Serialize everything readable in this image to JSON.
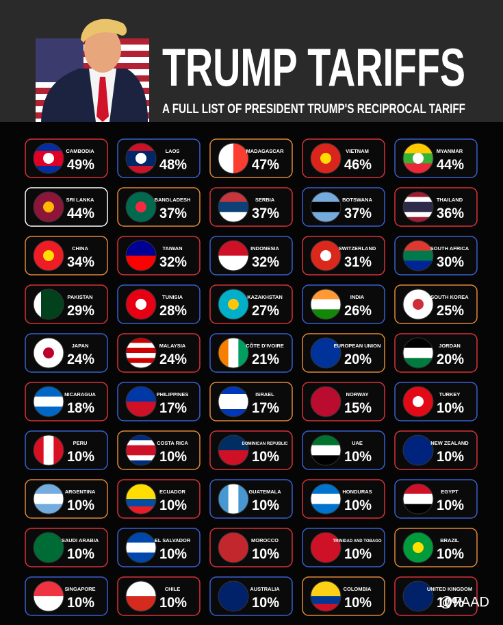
{
  "header": {
    "title": "TRUMP TARIFFS",
    "subtitle": "A FULL LIST OF PRESIDENT TRUMP'S RECIPROCAL TARIFF"
  },
  "cards": [
    {
      "country": "CAMBODIA",
      "tariff": "49%"
    },
    {
      "country": "LAOS",
      "tariff": "48%"
    },
    {
      "country": "MADAGASCAR",
      "tariff": "47%"
    },
    {
      "country": "VIETNAM",
      "tariff": "46%"
    },
    {
      "country": "MYANMAR",
      "tariff": "44%"
    },
    {
      "country": "SRI LANKA",
      "tariff": "44%"
    },
    {
      "country": "BANGLADESH",
      "tariff": "37%"
    },
    {
      "country": "SERBIA",
      "tariff": "37%"
    },
    {
      "country": "BOTSWANA",
      "tariff": "37%"
    },
    {
      "country": "THAILAND",
      "tariff": "36%"
    },
    {
      "country": "CHINA",
      "tariff": "34%"
    },
    {
      "country": "TAIWAN",
      "tariff": "32%"
    },
    {
      "country": "INDONESIA",
      "tariff": "32%"
    },
    {
      "country": "SWITZERLAND",
      "tariff": "31%"
    },
    {
      "country": "SOUTH AFRICA",
      "tariff": "30%"
    },
    {
      "country": "PAKISTAN",
      "tariff": "29%"
    },
    {
      "country": "TUNISIA",
      "tariff": "28%"
    },
    {
      "country": "KAZAKHSTAN",
      "tariff": "27%"
    },
    {
      "country": "INDIA",
      "tariff": "26%"
    },
    {
      "country": "SOUTH KOREA",
      "tariff": "25%"
    },
    {
      "country": "JAPAN",
      "tariff": "24%"
    },
    {
      "country": "MALAYSIA",
      "tariff": "24%"
    },
    {
      "country": "CÔTE D'IVOIRE",
      "tariff": "21%"
    },
    {
      "country": "EUROPEAN UNION",
      "tariff": "20%"
    },
    {
      "country": "JORDAN",
      "tariff": "20%"
    },
    {
      "country": "NICARAGUA",
      "tariff": "18%"
    },
    {
      "country": "PHILIPPINES",
      "tariff": "17%"
    },
    {
      "country": "ISRAEL",
      "tariff": "17%"
    },
    {
      "country": "NORWAY",
      "tariff": "15%"
    },
    {
      "country": "TURKEY",
      "tariff": "10%"
    },
    {
      "country": "PERU",
      "tariff": "10%"
    },
    {
      "country": "COSTA RICA",
      "tariff": "10%"
    },
    {
      "country": "DOMINICAN REPUBLIC",
      "tariff": "10%"
    },
    {
      "country": "UAE",
      "tariff": "10%"
    },
    {
      "country": "NEW ZEALAND",
      "tariff": "10%"
    },
    {
      "country": "ARGENTINA",
      "tariff": "10%"
    },
    {
      "country": "ECUADOR",
      "tariff": "10%"
    },
    {
      "country": "GUATEMALA",
      "tariff": "10%"
    },
    {
      "country": "HONDURAS",
      "tariff": "10%"
    },
    {
      "country": "EGYPT",
      "tariff": "10%"
    },
    {
      "country": "SAUDI ARABIA",
      "tariff": "10%"
    },
    {
      "country": "EL SALVADOR",
      "tariff": "10%"
    },
    {
      "country": "MOROCCO",
      "tariff": "10%"
    },
    {
      "country": "TRINIDAD AND TOBAGO",
      "tariff": "10%"
    },
    {
      "country": "BRAZIL",
      "tariff": "10%"
    },
    {
      "country": "SINGAPORE",
      "tariff": "10%"
    },
    {
      "country": "CHILE",
      "tariff": "10%"
    },
    {
      "country": "AUSTRALIA",
      "tariff": "10%"
    },
    {
      "country": "COLOMBIA",
      "tariff": "10%"
    },
    {
      "country": "UNITED KINGDOM",
      "tariff": "10%"
    }
  ],
  "watermark": "@PAAD"
}
